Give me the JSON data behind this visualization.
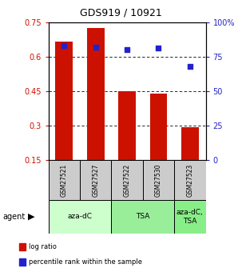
{
  "title": "GDS919 / 10921",
  "samples": [
    "GSM27521",
    "GSM27527",
    "GSM27522",
    "GSM27530",
    "GSM27523"
  ],
  "log_ratios": [
    0.665,
    0.725,
    0.448,
    0.44,
    0.293
  ],
  "percentile_ranks": [
    83,
    82,
    80,
    81,
    68
  ],
  "bar_color": "#cc1100",
  "dot_color": "#2222cc",
  "ylim_left": [
    0.15,
    0.75
  ],
  "ylim_right": [
    0,
    100
  ],
  "yticks_left": [
    0.15,
    0.3,
    0.45,
    0.6,
    0.75
  ],
  "yticks_right": [
    0,
    25,
    50,
    75,
    100
  ],
  "yticklabels_right": [
    "0",
    "25",
    "50",
    "75",
    "100%"
  ],
  "agent_groups": [
    {
      "label": "aza-dC",
      "span": [
        0,
        2
      ],
      "color": "#ccffcc"
    },
    {
      "label": "TSA",
      "span": [
        2,
        4
      ],
      "color": "#99ee99"
    },
    {
      "label": "aza-dC,\nTSA",
      "span": [
        4,
        5
      ],
      "color": "#88ee88"
    }
  ],
  "legend_items": [
    {
      "color": "#cc1100",
      "label": "log ratio"
    },
    {
      "color": "#2222cc",
      "label": "percentile rank within the sample"
    }
  ],
  "bar_width": 0.55,
  "background_color": "#ffffff"
}
